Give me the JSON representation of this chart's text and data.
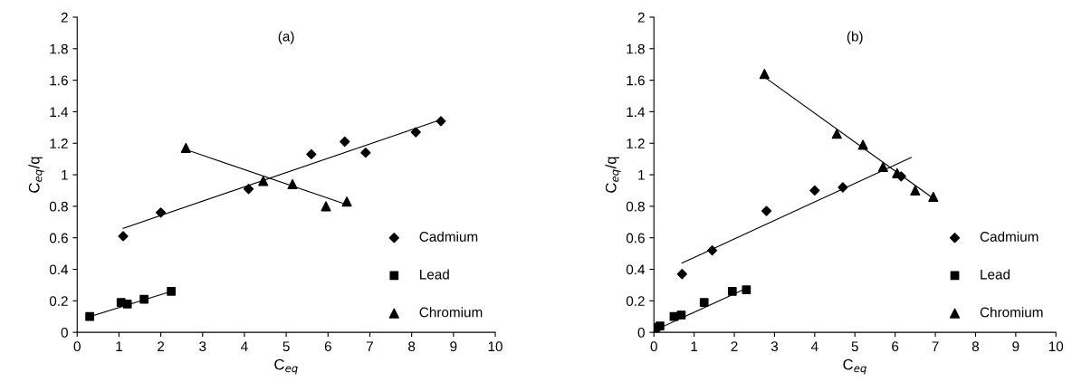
{
  "chart_data": [
    {
      "type": "scatter",
      "title": "(a)",
      "xlabel": "C$_{eq}$",
      "ylabel": "C$_{eq}$/q",
      "xlim": [
        0,
        10
      ],
      "ylim": [
        0,
        2
      ],
      "xticks": [
        0,
        1,
        2,
        3,
        4,
        5,
        6,
        7,
        8,
        9,
        10
      ],
      "yticks": [
        0,
        0.2,
        0.4,
        0.6,
        0.8,
        1,
        1.2,
        1.4,
        1.6,
        1.8,
        2
      ],
      "grid": false,
      "legend": "bottom right",
      "series": [
        {
          "name": "Cadmium",
          "color": "#000000",
          "marker": "diamond",
          "x": [
            1.1,
            2.0,
            4.1,
            5.6,
            6.4,
            6.9,
            8.1,
            8.7
          ],
          "values": [
            0.61,
            0.76,
            0.91,
            1.13,
            1.21,
            1.14,
            1.27,
            1.34
          ]
        },
        {
          "name": "Lead",
          "color": "#000000",
          "marker": "square",
          "x": [
            0.3,
            1.05,
            1.2,
            1.6,
            2.25
          ],
          "values": [
            0.1,
            0.19,
            0.18,
            0.21,
            0.26
          ]
        },
        {
          "name": "Chromium",
          "color": "#000000",
          "marker": "triangle",
          "x": [
            2.6,
            4.45,
            5.15,
            5.95,
            6.45
          ],
          "values": [
            1.17,
            0.96,
            0.94,
            0.8,
            0.83
          ]
        },
        {
          "type": "line",
          "color": "#000000",
          "x": [
            1.1,
            8.7
          ],
          "values": [
            0.66,
            1.35
          ]
        },
        {
          "type": "line",
          "color": "#000000",
          "x": [
            0.3,
            2.25
          ],
          "values": [
            0.1,
            0.26
          ]
        },
        {
          "type": "line",
          "color": "#000000",
          "x": [
            2.6,
            6.45
          ],
          "values": [
            1.16,
            0.81
          ]
        }
      ]
    },
    {
      "type": "scatter",
      "title": "(b)",
      "xlabel": "C$_{eq}$",
      "ylabel": "C$_{eq}$/q",
      "xlim": [
        0,
        10
      ],
      "ylim": [
        0,
        2
      ],
      "xticks": [
        0,
        1,
        2,
        3,
        4,
        5,
        6,
        7,
        8,
        9,
        10
      ],
      "yticks": [
        0,
        0.2,
        0.4,
        0.6,
        0.8,
        1,
        1.2,
        1.4,
        1.6,
        1.8,
        2
      ],
      "grid": false,
      "legend": "bottom right",
      "series": [
        {
          "name": "Cadmium",
          "color": "#000000",
          "marker": "diamond",
          "x": [
            0.7,
            1.45,
            2.8,
            4.0,
            4.7,
            6.15
          ],
          "values": [
            0.37,
            0.52,
            0.77,
            0.9,
            0.92,
            0.99
          ]
        },
        {
          "name": "Lead",
          "color": "#000000",
          "marker": "square",
          "x": [
            0,
            0.05,
            0.15,
            0.5,
            0.68,
            1.25,
            1.95,
            2.3
          ],
          "values": [
            0.0,
            0.03,
            0.04,
            0.1,
            0.11,
            0.19,
            0.26,
            0.27
          ]
        },
        {
          "name": "Chromium",
          "color": "#000000",
          "marker": "triangle",
          "x": [
            2.75,
            4.55,
            5.2,
            5.7,
            6.05,
            6.5,
            6.95
          ],
          "values": [
            1.64,
            1.26,
            1.19,
            1.05,
            1.01,
            0.9,
            0.86
          ]
        },
        {
          "type": "line",
          "color": "#000000",
          "x": [
            0.7,
            6.4
          ],
          "values": [
            0.44,
            1.11
          ]
        },
        {
          "type": "line",
          "color": "#000000",
          "x": [
            0,
            2.3
          ],
          "values": [
            0.01,
            0.28
          ]
        },
        {
          "type": "line",
          "color": "#000000",
          "x": [
            2.75,
            6.95
          ],
          "values": [
            1.62,
            0.85
          ]
        }
      ]
    }
  ]
}
